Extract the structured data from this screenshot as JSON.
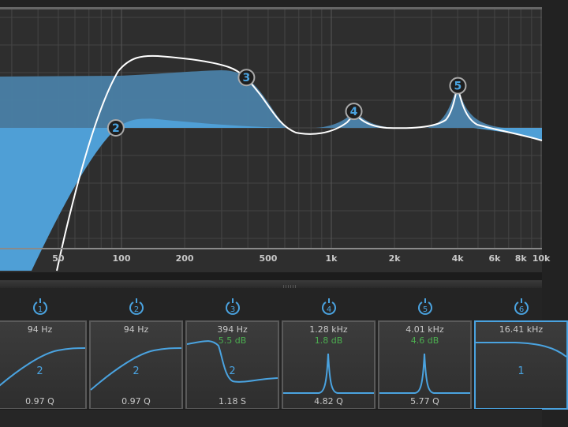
{
  "colors": {
    "accent": "#4aa3e0",
    "gain_text": "#4caf50",
    "curve": "#ffffff",
    "plot_bg": "#2e2e2e"
  },
  "graph": {
    "freq_axis": {
      "scale": "log",
      "labels": [
        "50",
        "100",
        "200",
        "500",
        "1k",
        "2k",
        "4k",
        "6k",
        "8k",
        "10k"
      ],
      "values": [
        50,
        100,
        200,
        500,
        1000,
        2000,
        4000,
        6000,
        8000,
        10000
      ]
    },
    "nodes": [
      {
        "id": "2",
        "freq_hz": 94,
        "gain_db": 0
      },
      {
        "id": "3",
        "freq_hz": 394,
        "gain_db": 5.5
      },
      {
        "id": "4",
        "freq_hz": 1280,
        "gain_db": 1.8
      },
      {
        "id": "5",
        "freq_hz": 4010,
        "gain_db": 4.6
      }
    ]
  },
  "bands": [
    {
      "power_label": "1",
      "freq": "94 Hz",
      "gain": "",
      "slope": "2",
      "q": "0.97 Q",
      "type": "highpass",
      "selected": false
    },
    {
      "power_label": "2",
      "freq": "94 Hz",
      "gain": "",
      "slope": "2",
      "q": "0.97 Q",
      "type": "highpass",
      "selected": false
    },
    {
      "power_label": "3",
      "freq": "394 Hz",
      "gain": "5.5 dB",
      "slope": "2",
      "q": "1.18 S",
      "type": "highshelf-cut",
      "selected": false
    },
    {
      "power_label": "4",
      "freq": "1.28 kHz",
      "gain": "1.8 dB",
      "slope": "",
      "q": "4.82 Q",
      "type": "bell",
      "selected": false
    },
    {
      "power_label": "5",
      "freq": "4.01 kHz",
      "gain": "4.6 dB",
      "slope": "",
      "q": "5.77 Q",
      "type": "bell",
      "selected": false
    },
    {
      "power_label": "6",
      "freq": "16.41 kHz",
      "gain": "",
      "slope": "1",
      "q": "",
      "type": "lowpass",
      "selected": true
    }
  ]
}
